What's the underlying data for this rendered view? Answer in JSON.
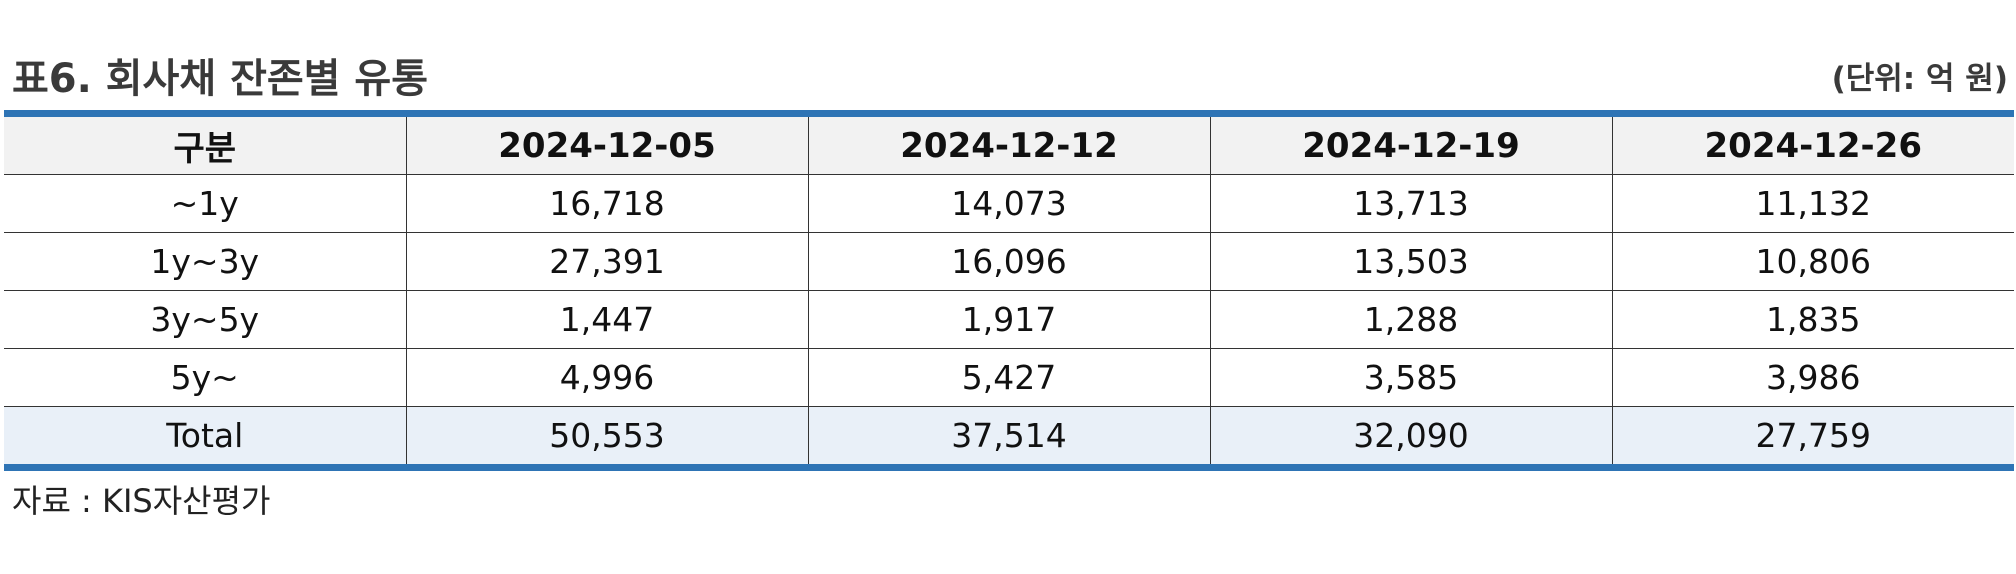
{
  "title": "표6. 회사채 잔존별 유통",
  "unit": "(단위: 억 원)",
  "table": {
    "headers": [
      "구분",
      "2024-12-05",
      "2024-12-12",
      "2024-12-19",
      "2024-12-26"
    ],
    "rows": [
      [
        "~1y",
        "16,718",
        "14,073",
        "13,713",
        "11,132"
      ],
      [
        "1y~3y",
        "27,391",
        "16,096",
        "13,503",
        "10,806"
      ],
      [
        "3y~5y",
        "1,447",
        "1,917",
        "1,288",
        "1,835"
      ],
      [
        "5y~",
        "4,996",
        "5,427",
        "3,585",
        "3,986"
      ],
      [
        "Total",
        "50,553",
        "37,514",
        "32,090",
        "27,759"
      ]
    ]
  },
  "source": "자료 : KIS자산평가",
  "colors": {
    "accent_border": "#2e74b5",
    "header_bg": "#f2f2f2",
    "total_row_bg": "#e9f0f8"
  }
}
